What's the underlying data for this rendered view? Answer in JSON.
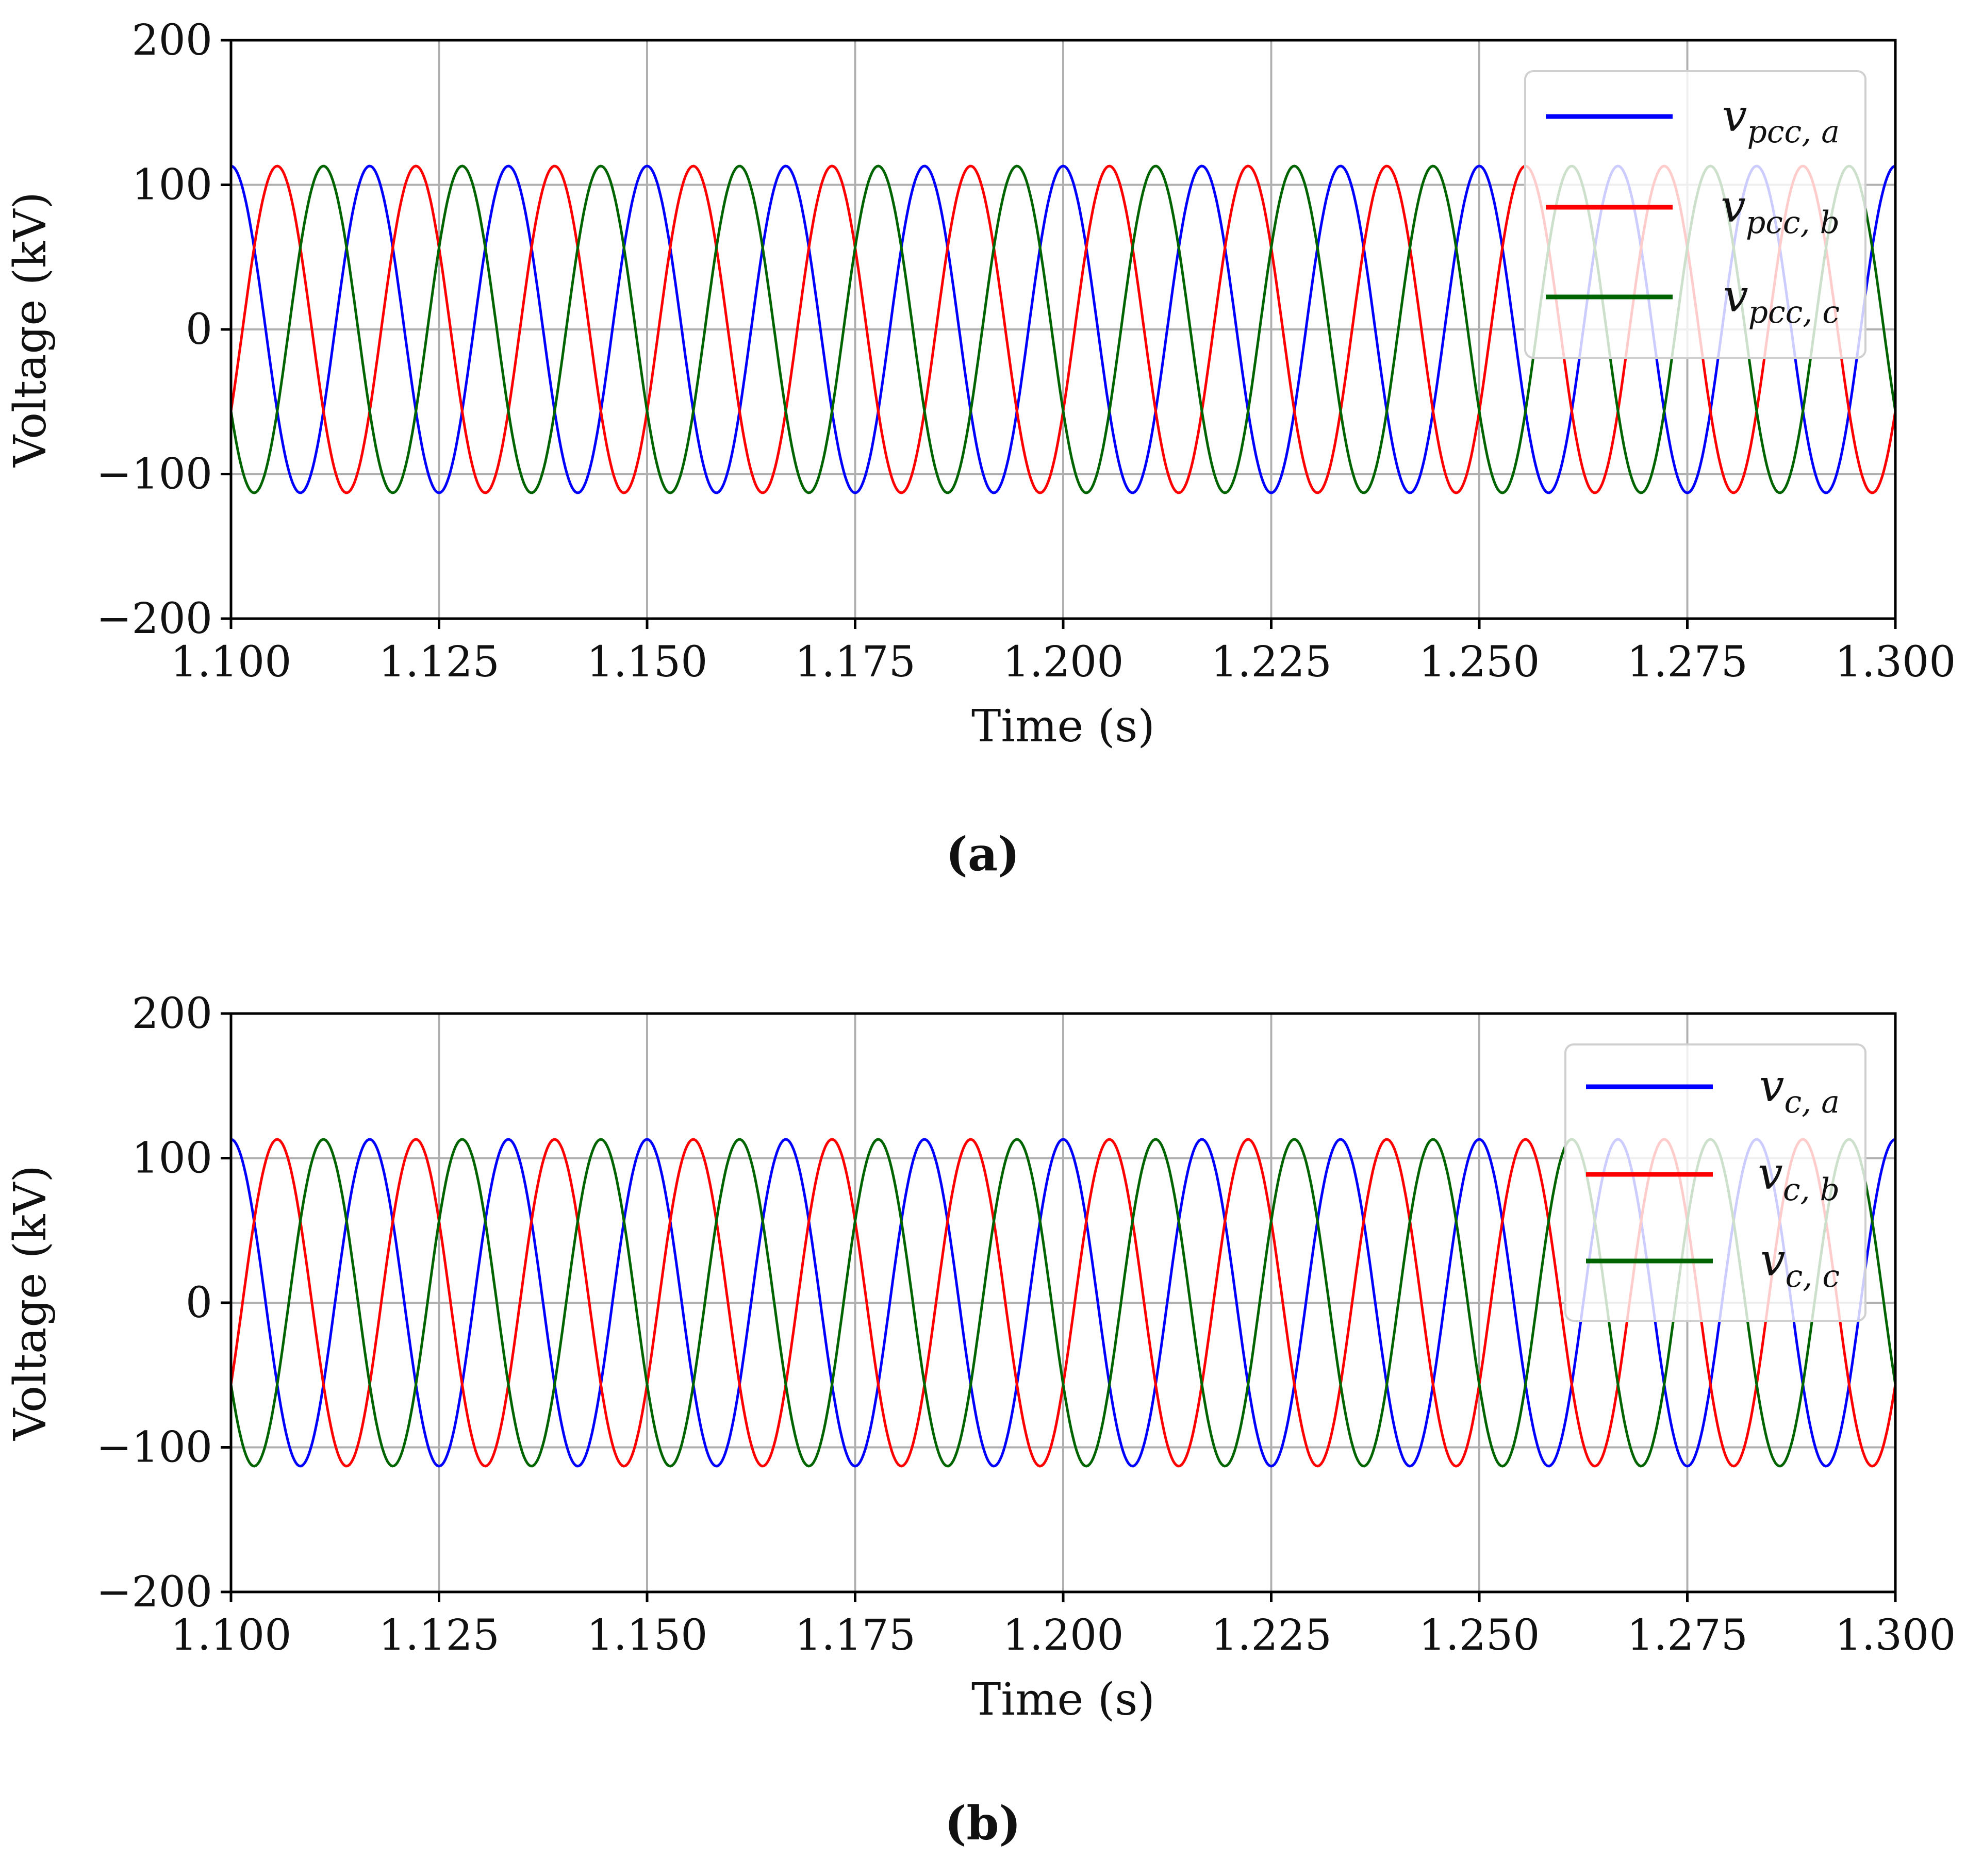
{
  "chart_data": [
    {
      "type": "line",
      "panel_label": "(a)",
      "xlabel": "Time (s)",
      "ylabel": "Voltage (kV)",
      "xlim": [
        1.1,
        1.3
      ],
      "ylim": [
        -200,
        200
      ],
      "x_ticks": [
        "1.100",
        "1.125",
        "1.150",
        "1.175",
        "1.200",
        "1.225",
        "1.250",
        "1.275",
        "1.300"
      ],
      "y_ticks": [
        "200",
        "100",
        "0",
        "−100",
        "−200"
      ],
      "grid": true,
      "legend_position": "upper right",
      "signal": {
        "frequency_hz": 60,
        "amplitude_kv": 113,
        "sample_step_s": 0.0002
      },
      "series": [
        {
          "name": "v",
          "subscript": "pcc, a",
          "color": "#0000ff",
          "phase_deg": 0
        },
        {
          "name": "v",
          "subscript": "pcc, b",
          "color": "#ff0000",
          "phase_deg": -120
        },
        {
          "name": "v",
          "subscript": "pcc, c",
          "color": "#006400",
          "phase_deg": 120
        }
      ]
    },
    {
      "type": "line",
      "panel_label": "(b)",
      "xlabel": "Time (s)",
      "ylabel": "Voltage (kV)",
      "xlim": [
        1.1,
        1.3
      ],
      "ylim": [
        -200,
        200
      ],
      "x_ticks": [
        "1.100",
        "1.125",
        "1.150",
        "1.175",
        "1.200",
        "1.225",
        "1.250",
        "1.275",
        "1.300"
      ],
      "y_ticks": [
        "200",
        "100",
        "0",
        "−100",
        "−200"
      ],
      "grid": true,
      "legend_position": "upper right",
      "signal": {
        "frequency_hz": 60,
        "amplitude_kv": 113,
        "sample_step_s": 0.0002
      },
      "series": [
        {
          "name": "v",
          "subscript": "c, a",
          "color": "#0000ff",
          "phase_deg": 0
        },
        {
          "name": "v",
          "subscript": "c, b",
          "color": "#ff0000",
          "phase_deg": -120
        },
        {
          "name": "v",
          "subscript": "c, c",
          "color": "#006400",
          "phase_deg": 120
        }
      ]
    }
  ]
}
